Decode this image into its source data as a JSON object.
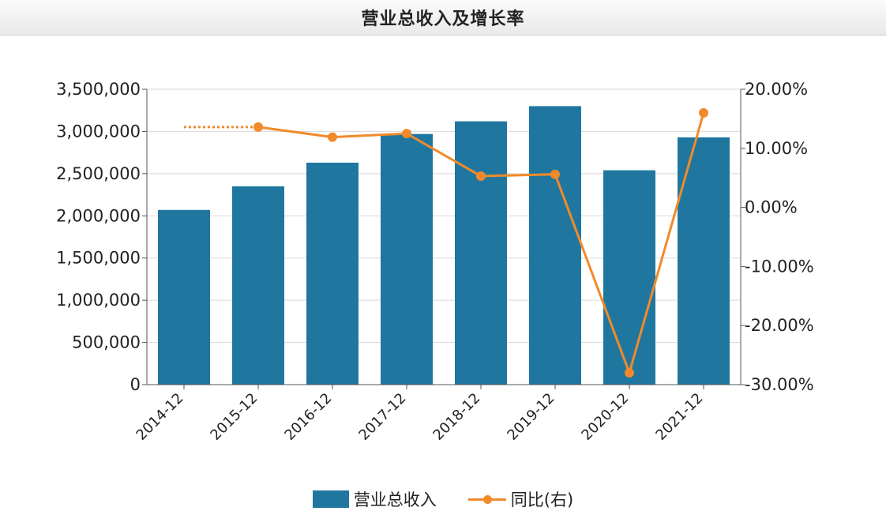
{
  "header": {
    "title": "营业总收入及增长率"
  },
  "legend": {
    "bar_label": "营业总收入",
    "line_label": "同比(右)"
  },
  "colors": {
    "bar": "#1f77a0",
    "line": "#f08a2a",
    "grid": "#d9d9d9",
    "axis": "#555555"
  },
  "chart_data": {
    "type": "bar",
    "title": "营业总收入及增长率",
    "categories": [
      "2014-12",
      "2015-12",
      "2016-12",
      "2017-12",
      "2018-12",
      "2019-12",
      "2020-12",
      "2021-12"
    ],
    "series": [
      {
        "name": "营业总收入",
        "type": "bar",
        "axis": "left",
        "values": [
          2070000,
          2350000,
          2630000,
          2970000,
          3120000,
          3300000,
          2540000,
          2930000
        ]
      },
      {
        "name": "同比(右)",
        "type": "line",
        "axis": "right",
        "values": [
          null,
          13.6,
          11.9,
          12.5,
          5.3,
          5.6,
          -28.0,
          16.0
        ]
      }
    ],
    "left_axis": {
      "min": 0,
      "max": 3500000,
      "ticks": [
        "3,500,000",
        "3,000,000",
        "2,500,000",
        "2,000,000",
        "1,500,000",
        "1,000,000",
        "500,000",
        "0"
      ]
    },
    "right_axis": {
      "min": -30,
      "max": 20,
      "ticks": [
        "20.00%",
        "10.00%",
        "0.00%",
        "-10.00%",
        "-20.00%",
        "-30.00%"
      ]
    },
    "grid": true,
    "legend_position": "bottom"
  }
}
